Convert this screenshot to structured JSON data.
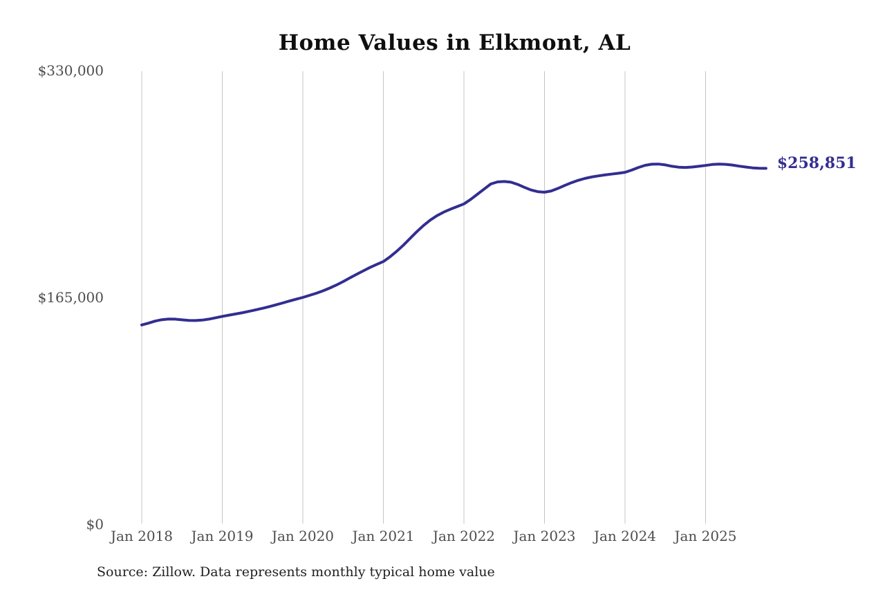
{
  "chart": {
    "title": "Home Values in Elkmont, AL",
    "end_label": "$258,851",
    "source": "Source: Zillow. Data represents monthly typical home value"
  },
  "colors": {
    "line": "#332e90",
    "end_label": "#332e90",
    "grid": "#c4c4c4",
    "axis_text": "#4d4d4d",
    "title_text": "#0f0f0f",
    "source_text": "#1f1f1f",
    "background": "#ffffff"
  },
  "chart_data": {
    "type": "line",
    "title": "Home Values in Elkmont, AL",
    "xlabel": "",
    "ylabel": "",
    "x_start": "2018-01",
    "x_interval": "monthly",
    "x_end": "2025-10",
    "x_tick_labels": [
      "Jan 2018",
      "Jan 2019",
      "Jan 2020",
      "Jan 2021",
      "Jan 2022",
      "Jan 2023",
      "Jan 2024",
      "Jan 2025"
    ],
    "y_tick_labels": [
      "$0",
      "$165,000",
      "$330,000"
    ],
    "y_tick_values": [
      0,
      165000,
      330000
    ],
    "ylim": [
      0,
      330000
    ],
    "grid": "vertical-only",
    "legend": "none",
    "end_annotation": {
      "text": "$258,851",
      "value": 258851
    },
    "series": [
      {
        "name": "Monthly typical home value",
        "values": [
          145000,
          146300,
          147800,
          148800,
          149300,
          149200,
          148700,
          148300,
          148200,
          148500,
          149200,
          150200,
          151200,
          152100,
          153000,
          153900,
          154900,
          156000,
          157100,
          158300,
          159600,
          161000,
          162400,
          163700,
          165000,
          166500,
          168000,
          169800,
          171800,
          174000,
          176500,
          179200,
          181800,
          184300,
          186800,
          189000,
          191100,
          194600,
          198600,
          203100,
          208000,
          212900,
          217400,
          221300,
          224500,
          227100,
          229200,
          231100,
          233000,
          236300,
          240000,
          243800,
          247500,
          249000,
          249300,
          248800,
          247200,
          245100,
          243100,
          241900,
          241500,
          242400,
          244300,
          246400,
          248400,
          250100,
          251500,
          252600,
          253400,
          254100,
          254700,
          255300,
          256000,
          257600,
          259500,
          261100,
          261900,
          262000,
          261400,
          260400,
          259700,
          259500,
          259800,
          260400,
          261000,
          261700,
          262000,
          261800,
          261300,
          260500,
          259800,
          259200,
          258900,
          258851
        ]
      }
    ]
  }
}
